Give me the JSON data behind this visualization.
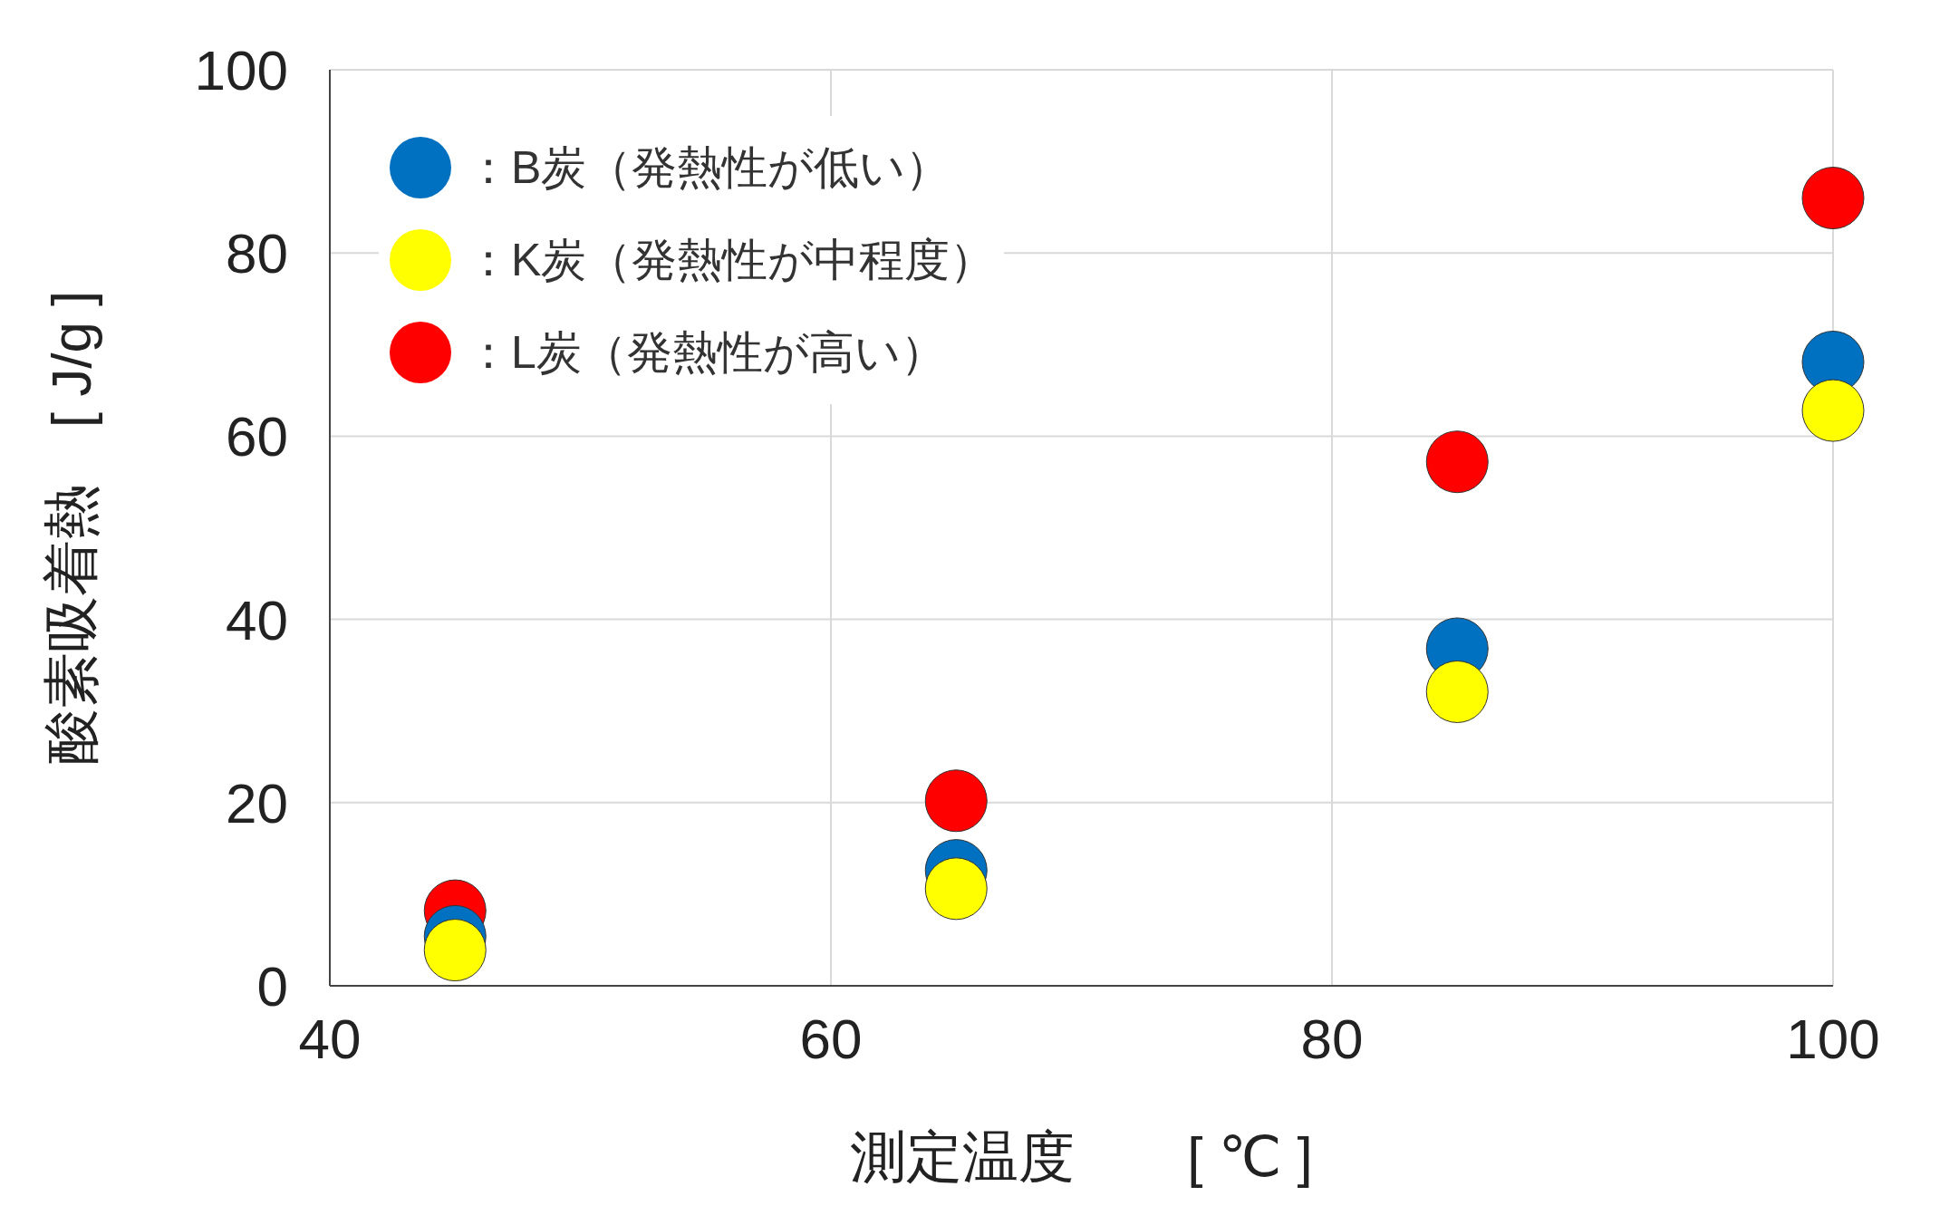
{
  "chart_data": {
    "type": "scatter",
    "xlabel": "測定温度　　[ ℃ ]",
    "ylabel": "酸素吸着熱　[ J/g ]",
    "x": [
      45,
      65,
      85,
      100
    ],
    "series": [
      {
        "name": "：B炭（発熱性が低い）",
        "color": "#0070c0",
        "values": [
          5.4,
          12.6,
          36.8,
          68.1
        ]
      },
      {
        "name": "：K炭（発熱性が中程度）",
        "color": "#ffff00",
        "values": [
          3.9,
          10.6,
          32.1,
          62.8
        ]
      },
      {
        "name": "：L炭（発熱性が高い）",
        "color": "#ff0000",
        "values": [
          8.2,
          20.2,
          57.2,
          86
        ]
      }
    ],
    "xlim": [
      40,
      100
    ],
    "xticks": [
      40,
      60,
      80,
      100
    ],
    "ylim": [
      0,
      100
    ],
    "yticks": [
      0,
      20,
      40,
      60,
      80,
      100
    ],
    "grid": true,
    "legend": "top left",
    "marker": "circle"
  }
}
